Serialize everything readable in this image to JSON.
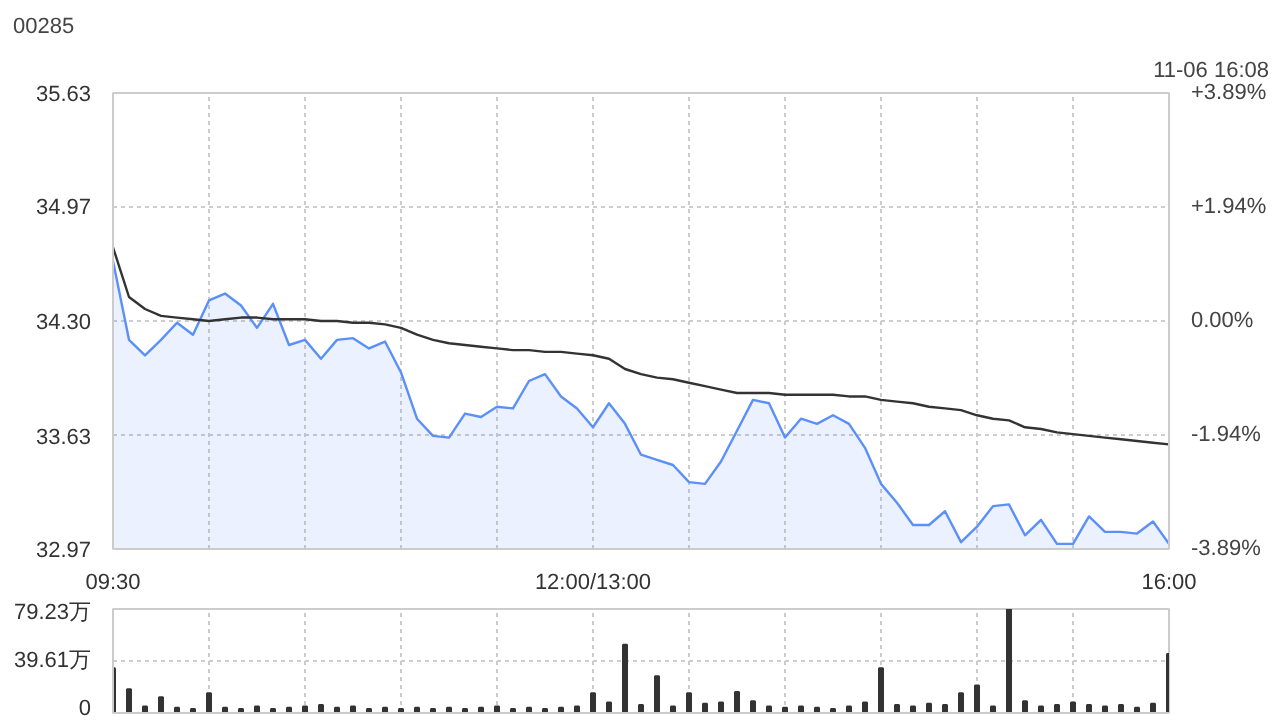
{
  "chart_data": [
    {
      "type": "line",
      "title": "00285",
      "annotations": [
        "11-06 16:08"
      ],
      "categories": [
        "09:30",
        null,
        null,
        null,
        null,
        null,
        null,
        null,
        null,
        null,
        null,
        null,
        null,
        null,
        null,
        null,
        null,
        null,
        null,
        null,
        null,
        null,
        null,
        null,
        null,
        null,
        null,
        null,
        null,
        null,
        "12:00/13:00",
        null,
        null,
        null,
        null,
        null,
        null,
        null,
        null,
        null,
        null,
        null,
        null,
        null,
        null,
        null,
        null,
        null,
        null,
        null,
        null,
        null,
        null,
        null,
        null,
        null,
        null,
        null,
        null,
        null,
        null,
        null,
        null,
        null,
        null,
        null,
        "16:00"
      ],
      "ylim": [
        32.97,
        35.63
      ],
      "yticks": [
        32.97,
        33.63,
        {
          "value": 34.3,
          "label": "34.30"
        },
        34.97,
        35.63
      ],
      "y2lim": [
        -3.89,
        3.89
      ],
      "y2ticks": [
        {
          "value": -3.89,
          "label": "-3.89%"
        },
        {
          "value": -1.94,
          "label": "-1.94%"
        },
        {
          "value": 0,
          "label": "0.00%"
        },
        {
          "value": 1.94,
          "label": "+1.94%"
        },
        {
          "value": 3.89,
          "label": "+3.89%"
        }
      ],
      "grid": true,
      "line_style": "solid",
      "series": [
        {
          "type": "area",
          "color": "#5b8ff9",
          "values": [
            34.65,
            34.19,
            34.1,
            34.19,
            34.29,
            34.22,
            34.42,
            34.46,
            34.39,
            34.26,
            34.4,
            34.16,
            34.19,
            34.08,
            34.19,
            34.2,
            34.14,
            34.18,
            34,
            33.73,
            33.63,
            33.62,
            33.76,
            33.74,
            33.8,
            33.79,
            33.95,
            33.99,
            33.86,
            33.79,
            33.68,
            33.82,
            33.7,
            33.52,
            33.49,
            33.46,
            33.36,
            33.35,
            33.48,
            33.66,
            33.84,
            33.82,
            33.62,
            33.73,
            33.7,
            33.75,
            33.7,
            33.56,
            33.35,
            33.24,
            33.11,
            33.11,
            33.19,
            33.01,
            33.1,
            33.22,
            33.23,
            33.05,
            33.14,
            33,
            33,
            33.16,
            33.07,
            33.07,
            33.06,
            33.13,
            33
          ]
        },
        {
          "type": "line",
          "color": "#333333",
          "values": [
            34.73,
            34.44,
            34.37,
            34.33,
            34.32,
            34.31,
            34.3,
            34.31,
            34.32,
            34.32,
            34.31,
            34.31,
            34.31,
            34.3,
            34.3,
            34.29,
            34.29,
            34.28,
            34.26,
            34.22,
            34.19,
            34.17,
            34.16,
            34.15,
            34.14,
            34.13,
            34.13,
            34.12,
            34.12,
            34.11,
            34.1,
            34.08,
            34.02,
            33.99,
            33.97,
            33.96,
            33.94,
            33.92,
            33.9,
            33.88,
            33.88,
            33.88,
            33.87,
            33.87,
            33.87,
            33.87,
            33.86,
            33.86,
            33.84,
            33.83,
            33.82,
            33.8,
            33.79,
            33.78,
            33.75,
            33.73,
            33.72,
            33.68,
            33.67,
            33.65,
            33.64,
            33.63,
            33.62,
            33.61,
            33.6,
            33.59,
            33.58
          ]
        }
      ]
    },
    {
      "type": "bar",
      "ylim": [
        0,
        79.23
      ],
      "yticks": [
        0,
        {
          "value": 39.61,
          "label": "39.61万"
        },
        {
          "value": 79.23,
          "label": "79.23万"
        }
      ],
      "categories": [
        null,
        null,
        null,
        null,
        null,
        null,
        null,
        null,
        null,
        null,
        null,
        null,
        null,
        null,
        null,
        null,
        null,
        null,
        null,
        null,
        null,
        null,
        null,
        null,
        null,
        null,
        null,
        null,
        null,
        null,
        null,
        null,
        null,
        null,
        null,
        null,
        null,
        null,
        null,
        null,
        null,
        null,
        null,
        null,
        null,
        null,
        null,
        null,
        null,
        null,
        null,
        null,
        null,
        null,
        null,
        null,
        null,
        null,
        null,
        null,
        null,
        null,
        null,
        null,
        null,
        null,
        null
      ],
      "grid": true,
      "color": "#333333",
      "values": [
        34,
        18,
        5,
        12,
        4,
        3,
        15,
        4,
        3,
        5,
        3,
        4,
        5,
        6,
        4,
        5,
        3,
        4,
        3,
        4,
        3,
        4,
        3,
        4,
        5,
        3,
        4,
        3,
        4,
        5,
        15,
        8,
        52,
        6,
        28,
        5,
        15,
        7,
        8,
        16,
        9,
        5,
        4,
        5,
        4,
        3,
        5,
        8,
        34,
        6,
        5,
        7,
        6,
        15,
        21,
        5,
        79.23,
        9,
        5,
        6,
        8,
        6,
        5,
        6,
        4,
        7,
        45
      ]
    }
  ]
}
